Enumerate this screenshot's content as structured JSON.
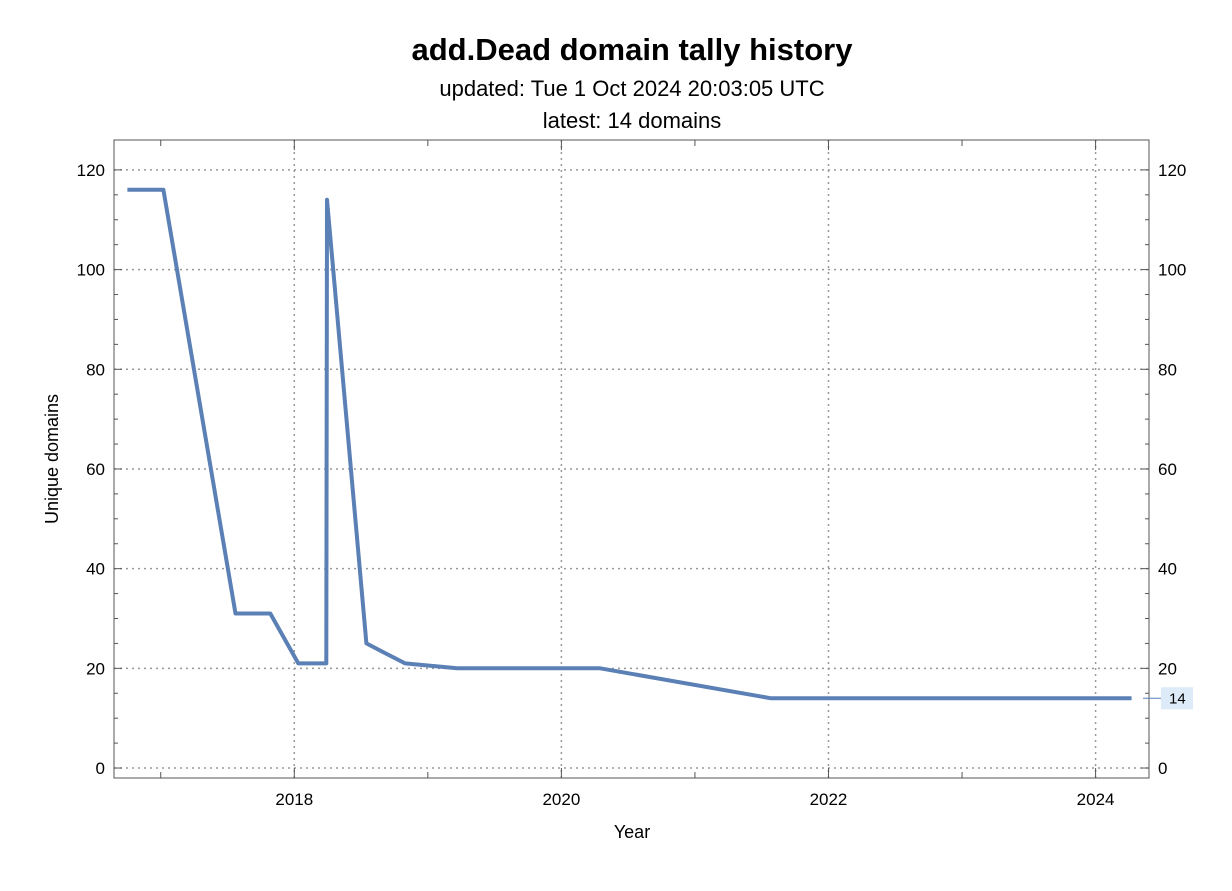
{
  "chart_data": {
    "type": "line",
    "title": "add.Dead domain tally history",
    "subtitle_lines": [
      "updated: Tue 1 Oct 2024 20:03:05 UTC",
      "latest: 14 domains"
    ],
    "xlabel": "Year",
    "ylabel": "Unique domains",
    "xlim": [
      2016.65,
      2024.4
    ],
    "ylim": [
      -2,
      126
    ],
    "x_ticks": [
      2018,
      2020,
      2022,
      2024
    ],
    "y_ticks": [
      0,
      20,
      40,
      60,
      80,
      100,
      120
    ],
    "grid": true,
    "series": [
      {
        "color": "#5b80b5",
        "points": [
          [
            2016.75,
            116
          ],
          [
            2017.02,
            116
          ],
          [
            2017.56,
            31
          ],
          [
            2017.82,
            31
          ],
          [
            2018.03,
            21
          ],
          [
            2018.24,
            21
          ],
          [
            2018.245,
            114
          ],
          [
            2018.54,
            25
          ],
          [
            2018.83,
            21
          ],
          [
            2019.22,
            20
          ],
          [
            2020.29,
            20
          ],
          [
            2021.57,
            14
          ],
          [
            2024.27,
            14
          ]
        ]
      }
    ],
    "latest_label": "14",
    "latest_value": 14
  }
}
